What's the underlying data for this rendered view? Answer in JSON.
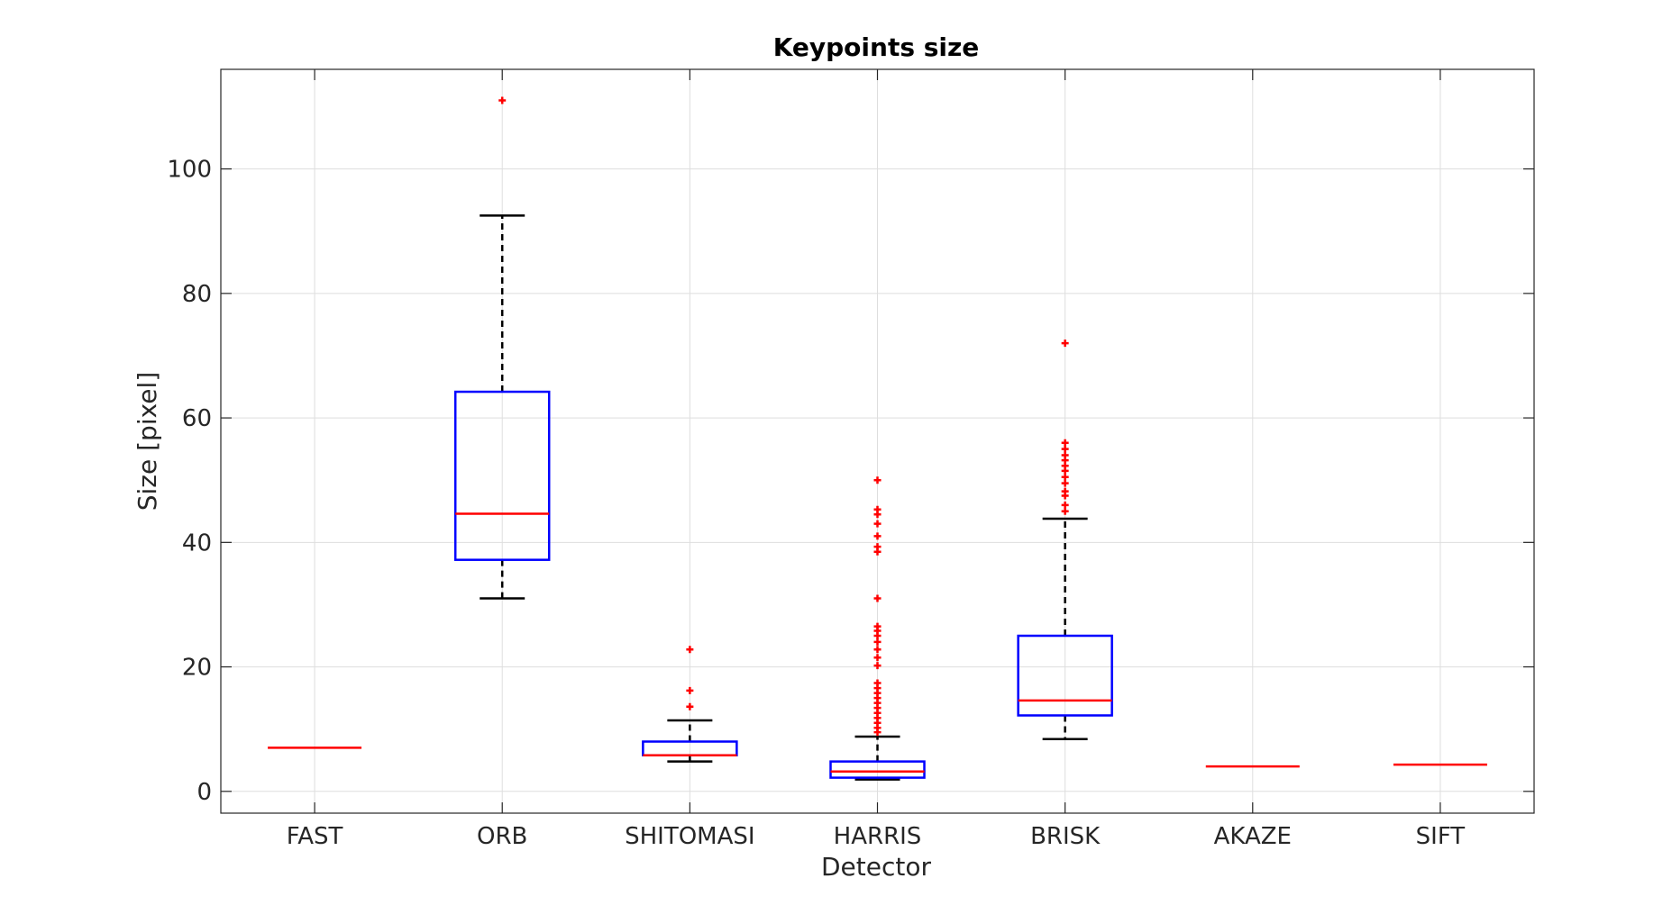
{
  "chart_data": {
    "type": "box",
    "title": "Keypoints size",
    "xlabel": "Detector",
    "ylabel": "Size [pixel]",
    "ylim": [
      -3.5,
      116
    ],
    "yticks": [
      0,
      20,
      40,
      60,
      80,
      100
    ],
    "grid": true,
    "categories": [
      "FAST",
      "ORB",
      "SHITOMASI",
      "HARRIS",
      "BRISK",
      "AKAZE",
      "SIFT"
    ],
    "boxes": [
      {
        "q1": 7,
        "median": 7,
        "q3": 7,
        "whisker_low": 7,
        "whisker_high": 7,
        "outliers": []
      },
      {
        "q1": 37.2,
        "median": 44.6,
        "q3": 64.2,
        "whisker_low": 31,
        "whisker_high": 92.5,
        "outliers": [
          111
        ]
      },
      {
        "q1": 5.8,
        "median": 5.8,
        "q3": 8,
        "whisker_low": 4.8,
        "whisker_high": 11.4,
        "outliers": [
          13.6,
          16.2,
          22.8
        ]
      },
      {
        "q1": 2.2,
        "median": 3.2,
        "q3": 4.8,
        "whisker_low": 1.9,
        "whisker_high": 8.8,
        "outliers": [
          9.5,
          10.2,
          11,
          11.8,
          12.6,
          13.4,
          14.2,
          15,
          15.8,
          16.6,
          17.4,
          20.2,
          21.5,
          22.8,
          24,
          25,
          25.8,
          26.5,
          31,
          38.5,
          39.3,
          41,
          43,
          44.5,
          45.3,
          50
        ]
      },
      {
        "q1": 12.2,
        "median": 14.6,
        "q3": 25,
        "whisker_low": 8.4,
        "whisker_high": 43.8,
        "outliers": [
          45,
          46,
          47.5,
          48.2,
          49.5,
          50.5,
          51.5,
          52.3,
          53.2,
          54,
          55,
          56,
          72
        ]
      },
      {
        "q1": 4,
        "median": 4,
        "q3": 4,
        "whisker_low": 4,
        "whisker_high": 4,
        "outliers": []
      },
      {
        "q1": 4.3,
        "median": 4.3,
        "q3": 4.3,
        "whisker_low": 4.3,
        "whisker_high": 4.3,
        "outliers": []
      }
    ],
    "colors": {
      "box": "#0000ff",
      "median": "#ff0000",
      "whisker": "#000000",
      "outlier": "#ff0000",
      "grid": "#dedede",
      "axes": "#262626"
    }
  }
}
